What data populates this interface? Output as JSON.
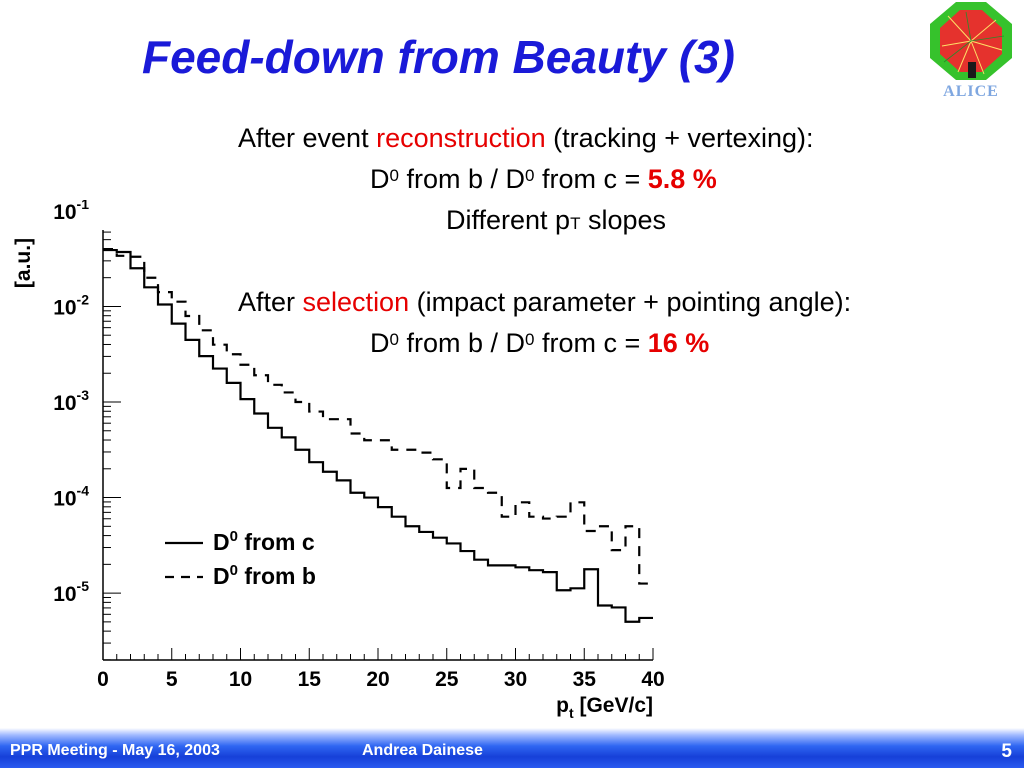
{
  "slide": {
    "title": "Feed-down from Beauty (3)",
    "logo_text": "ALICE",
    "lines": [
      {
        "a": "After event ",
        "b": "reconstruction",
        "c": " (tracking + vertexing):"
      },
      {
        "d": "D",
        "e": "0",
        "f": " from b / D",
        "g": "0",
        "h": " from c = ",
        "i": "5.8 %"
      },
      {
        "a": "Different p",
        "b": "T",
        "c": " slopes"
      },
      {
        "a": "After ",
        "b": "selection",
        "c": " (impact parameter + pointing angle):"
      },
      {
        "d": "D",
        "e": "0",
        "f": " from b / D",
        "g": "0",
        "h": " from c = ",
        "i": "16 %"
      }
    ]
  },
  "footer": {
    "meeting": "PPR Meeting - May 16, 2003",
    "author": "Andrea Dainese",
    "page": "5"
  },
  "chart_data": {
    "type": "line",
    "step": true,
    "title": "",
    "xlabel": "p",
    "xlabel_sub": "t",
    "xlabel_unit": "[GeV/c]",
    "ylabel": "[a.u.]",
    "xlim": [
      0,
      40
    ],
    "ylim_log10": [
      -5.7,
      -1.2
    ],
    "log_y": true,
    "x_ticks": [
      "0",
      "5",
      "10",
      "15",
      "20",
      "25",
      "30",
      "35",
      "40"
    ],
    "y_ticks": [
      {
        "base": "10",
        "exp": "-1",
        "log": -1
      },
      {
        "base": "10",
        "exp": "-2",
        "log": -2
      },
      {
        "base": "10",
        "exp": "-3",
        "log": -3
      },
      {
        "base": "10",
        "exp": "-4",
        "log": -4
      },
      {
        "base": "10",
        "exp": "-5",
        "log": -5
      }
    ],
    "x_edges": [
      0,
      1,
      2,
      3,
      4,
      5,
      6,
      7,
      8,
      9,
      10,
      11,
      12,
      13,
      14,
      15,
      16,
      17,
      18,
      19,
      20,
      21,
      22,
      23,
      24,
      25,
      26,
      27,
      28,
      29,
      30,
      31,
      32,
      33,
      34,
      35,
      36,
      37,
      38,
      39,
      40
    ],
    "series": [
      {
        "name": "D",
        "name_sup": "0",
        "name_rest": " from c",
        "dash": "solid",
        "log10_values": [
          -1.41,
          -1.43,
          -1.6,
          -1.8,
          -1.98,
          -2.18,
          -2.35,
          -2.52,
          -2.65,
          -2.8,
          -2.97,
          -3.12,
          -3.27,
          -3.37,
          -3.5,
          -3.63,
          -3.73,
          -3.82,
          -3.95,
          -4.0,
          -4.1,
          -4.2,
          -4.3,
          -4.36,
          -4.42,
          -4.48,
          -4.56,
          -4.65,
          -4.71,
          -4.71,
          -4.73,
          -4.76,
          -4.78,
          -4.97,
          -4.95,
          -4.75,
          -5.13,
          -5.15,
          -5.3,
          -5.26
        ]
      },
      {
        "name": "D",
        "name_sup": "0",
        "name_rest": " from b",
        "dash": "dashed",
        "log10_values": [
          -1.4,
          -1.47,
          -1.48,
          -1.7,
          -1.85,
          -1.95,
          -2.1,
          -2.25,
          -2.4,
          -2.5,
          -2.61,
          -2.72,
          -2.82,
          -2.9,
          -3.0,
          -3.1,
          -3.18,
          -3.18,
          -3.33,
          -3.4,
          -3.4,
          -3.5,
          -3.5,
          -3.53,
          -3.6,
          -3.9,
          -3.7,
          -3.9,
          -3.95,
          -4.2,
          -4.05,
          -4.2,
          -4.22,
          -4.2,
          -4.05,
          -4.35,
          -4.3,
          -4.55,
          -4.3,
          -4.9
        ]
      }
    ],
    "legend_position": "bottom-left"
  }
}
